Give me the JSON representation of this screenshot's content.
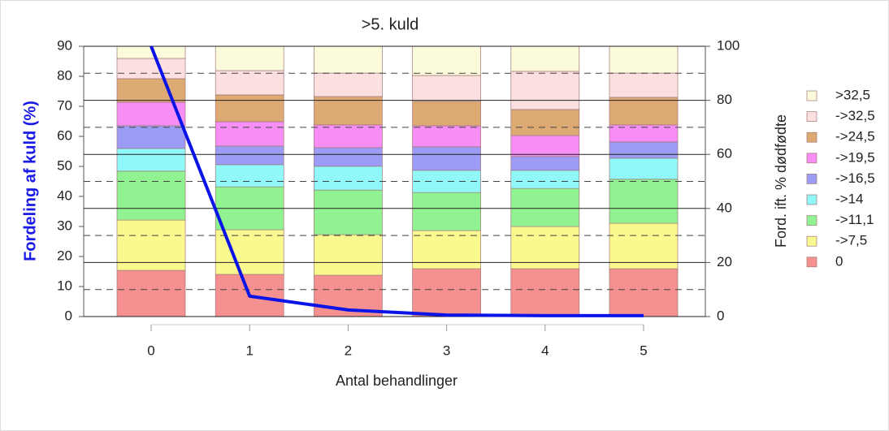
{
  "chart_data": {
    "type": "bar",
    "stacked": true,
    "title": ">5. kuld",
    "x_label": "Antal behandlinger",
    "y_label": "Fordeling af kuld (%)",
    "y2_label": "Ford. ift. % dødfødte",
    "categories": [
      "0",
      "1",
      "2",
      "3",
      "4",
      "5"
    ],
    "ylim": [
      0,
      90
    ],
    "yticks": [
      0,
      10,
      20,
      30,
      40,
      50,
      60,
      70,
      80,
      90
    ],
    "y2lim": [
      0,
      100
    ],
    "y2ticks": [
      0,
      20,
      40,
      60,
      80,
      100
    ],
    "y2minor": [
      10,
      30,
      50,
      70,
      90
    ],
    "grid": true,
    "legend": "right",
    "series": [
      {
        "name": "0",
        "color": "#f4908f",
        "axis": "y2",
        "values": [
          17.1,
          15.6,
          15.3,
          17.7,
          17.7,
          17.7
        ]
      },
      {
        "name": "->7,5",
        "color": "#f9f98f",
        "axis": "y2",
        "values": [
          18.6,
          16.5,
          15.0,
          14.1,
          15.6,
          16.8
        ]
      },
      {
        "name": "->11,1",
        "color": "#90f290",
        "axis": "y2",
        "values": [
          18.1,
          15.9,
          16.5,
          14.1,
          14.1,
          16.3
        ]
      },
      {
        "name": "->14",
        "color": "#90f8f8",
        "axis": "y2",
        "values": [
          8.4,
          8.2,
          8.8,
          8.2,
          6.7,
          7.8
        ]
      },
      {
        "name": "->16,5",
        "color": "#9c9cf6",
        "axis": "y2",
        "values": [
          8.4,
          6.9,
          6.9,
          8.7,
          5.1,
          6.0
        ]
      },
      {
        "name": "->19,5",
        "color": "#f68ef6",
        "axis": "y2",
        "values": [
          8.7,
          9.0,
          8.4,
          7.8,
          7.8,
          6.3
        ]
      },
      {
        "name": "->24,5",
        "color": "#deaa74",
        "axis": "y2",
        "values": [
          8.7,
          9.9,
          10.5,
          9.0,
          9.6,
          10.2
        ]
      },
      {
        "name": "->32,5",
        "color": "#fce0e0",
        "axis": "y2",
        "values": [
          7.5,
          9.0,
          8.7,
          9.6,
          14.1,
          9.0
        ]
      },
      {
        "name": ">32,5",
        "color": "#fbfbdc",
        "axis": "y2",
        "values": [
          4.5,
          9.0,
          9.9,
          10.8,
          9.3,
          9.9
        ]
      },
      {
        "type": "line",
        "color": "#0a14e6",
        "axis": "y",
        "values": [
          90,
          6.8,
          2.2,
          0.5,
          0.3,
          0.3
        ]
      }
    ]
  }
}
